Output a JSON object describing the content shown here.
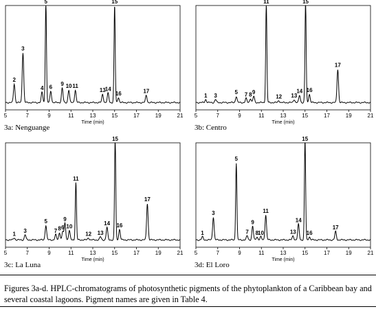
{
  "chart_data": [
    {
      "type": "line",
      "panel_label": "3a: Nenguange",
      "xlabel": "Time (min)",
      "xlim": [
        5,
        21
      ],
      "x_ticks": [
        "5",
        "7",
        "9",
        "11",
        "13",
        "15",
        "17",
        "19",
        "21"
      ],
      "ylim": [
        0,
        1
      ],
      "baseline": 0.07,
      "peaks": [
        {
          "label": "2",
          "x": 5.8,
          "h": 0.18
        },
        {
          "label": "3",
          "x": 6.6,
          "h": 0.48
        },
        {
          "label": "4",
          "x": 8.35,
          "h": 0.1
        },
        {
          "label": "5",
          "x": 8.7,
          "h": 0.97
        },
        {
          "label": "6",
          "x": 9.15,
          "h": 0.11
        },
        {
          "label": "9",
          "x": 10.2,
          "h": 0.14
        },
        {
          "label": "10",
          "x": 10.8,
          "h": 0.12
        },
        {
          "label": "11",
          "x": 11.4,
          "h": 0.12
        },
        {
          "label": "13",
          "x": 13.9,
          "h": 0.08
        },
        {
          "label": "14",
          "x": 14.4,
          "h": 0.09
        },
        {
          "label": "15",
          "x": 15.0,
          "h": 0.93
        },
        {
          "label": "16",
          "x": 15.35,
          "h": 0.05
        },
        {
          "label": "17",
          "x": 17.9,
          "h": 0.07
        }
      ]
    },
    {
      "type": "line",
      "panel_label": "3b: Centro",
      "xlabel": "Time (min)",
      "xlim": [
        5,
        21
      ],
      "x_ticks": [
        "5",
        "7",
        "9",
        "11",
        "13",
        "15",
        "17",
        "19",
        "21"
      ],
      "ylim": [
        0,
        1
      ],
      "baseline": 0.07,
      "peaks": [
        {
          "label": "1",
          "x": 5.9,
          "h": 0.03
        },
        {
          "label": "3",
          "x": 6.8,
          "h": 0.03
        },
        {
          "label": "5",
          "x": 8.7,
          "h": 0.06
        },
        {
          "label": "7",
          "x": 9.6,
          "h": 0.04
        },
        {
          "label": "8",
          "x": 10.0,
          "h": 0.04
        },
        {
          "label": "9",
          "x": 10.3,
          "h": 0.06
        },
        {
          "label": "11",
          "x": 11.45,
          "h": 0.95
        },
        {
          "label": "12",
          "x": 12.6,
          "h": 0.02
        },
        {
          "label": "13",
          "x": 14.0,
          "h": 0.03
        },
        {
          "label": "14",
          "x": 14.5,
          "h": 0.07
        },
        {
          "label": "15",
          "x": 15.05,
          "h": 0.97
        },
        {
          "label": "16",
          "x": 15.4,
          "h": 0.08
        },
        {
          "label": "17",
          "x": 18.0,
          "h": 0.32
        }
      ]
    },
    {
      "type": "line",
      "panel_label": "3c: La Luna",
      "xlabel": "Time (min)",
      "xlim": [
        5,
        21
      ],
      "x_ticks": [
        "5",
        "7",
        "9",
        "11",
        "13",
        "15",
        "17",
        "19",
        "21"
      ],
      "ylim": [
        0,
        1
      ],
      "baseline": 0.07,
      "peaks": [
        {
          "label": "1",
          "x": 5.8,
          "h": 0.02
        },
        {
          "label": "3",
          "x": 6.8,
          "h": 0.05
        },
        {
          "label": "5",
          "x": 8.7,
          "h": 0.14
        },
        {
          "label": "7",
          "x": 9.6,
          "h": 0.05
        },
        {
          "label": "8",
          "x": 9.95,
          "h": 0.07
        },
        {
          "label": "6",
          "x": 10.25,
          "h": 0.08
        },
        {
          "label": "9",
          "x": 10.45,
          "h": 0.16
        },
        {
          "label": "10",
          "x": 10.85,
          "h": 0.09
        },
        {
          "label": "11",
          "x": 11.45,
          "h": 0.55
        },
        {
          "label": "12",
          "x": 12.6,
          "h": 0.02
        },
        {
          "label": "13",
          "x": 13.7,
          "h": 0.03
        },
        {
          "label": "14",
          "x": 14.3,
          "h": 0.12
        },
        {
          "label": "15",
          "x": 15.05,
          "h": 0.98
        },
        {
          "label": "16",
          "x": 15.45,
          "h": 0.1
        },
        {
          "label": "17",
          "x": 18.0,
          "h": 0.35
        }
      ]
    },
    {
      "type": "line",
      "panel_label": "3d: El Loro",
      "xlabel": "Time (min)",
      "xlim": [
        5,
        21
      ],
      "x_ticks": [
        "5",
        "7",
        "9",
        "11",
        "13",
        "15",
        "17",
        "19",
        "21"
      ],
      "ylim": [
        0,
        1
      ],
      "baseline": 0.07,
      "peaks": [
        {
          "label": "1",
          "x": 5.6,
          "h": 0.03
        },
        {
          "label": "3",
          "x": 6.6,
          "h": 0.22
        },
        {
          "label": "5",
          "x": 8.7,
          "h": 0.74
        },
        {
          "label": "7",
          "x": 9.7,
          "h": 0.04
        },
        {
          "label": "9",
          "x": 10.2,
          "h": 0.13
        },
        {
          "label": "8",
          "x": 10.6,
          "h": 0.03
        },
        {
          "label": "10",
          "x": 10.95,
          "h": 0.03
        },
        {
          "label": "11",
          "x": 11.4,
          "h": 0.24
        },
        {
          "label": "13",
          "x": 13.9,
          "h": 0.04
        },
        {
          "label": "14",
          "x": 14.4,
          "h": 0.15
        },
        {
          "label": "15",
          "x": 15.0,
          "h": 0.97
        },
        {
          "label": "16",
          "x": 15.4,
          "h": 0.03
        },
        {
          "label": "17",
          "x": 17.8,
          "h": 0.08
        }
      ]
    }
  ],
  "caption": "Figures 3a-d. HPLC-chromatograms of photosynthetic pigments of the phytoplankton of a Caribbean bay and several coastal lagoons. Pigment names are given in Table 4."
}
